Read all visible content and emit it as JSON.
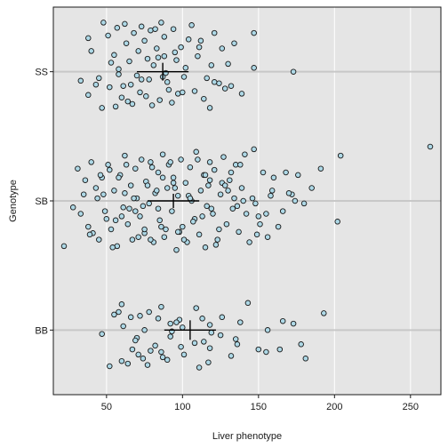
{
  "chart_data": {
    "type": "scatter",
    "xlabel": "Liver phenotype",
    "ylabel": "Genotype",
    "xlim": [
      15,
      270
    ],
    "x_ticks": [
      50,
      100,
      150,
      200,
      250
    ],
    "categories": [
      "BB",
      "SB",
      "SS"
    ],
    "grid": true,
    "background": "#e5e5e5",
    "point_fill": "#add8e6",
    "point_stroke": "#1a1a1a",
    "summary": [
      {
        "genotype": "SS",
        "mean": 87,
        "sd_bar": 10
      },
      {
        "genotype": "SB",
        "mean": 94,
        "sd_bar": 8
      },
      {
        "genotype": "BB",
        "mean": 105,
        "sd_bar": 11
      }
    ],
    "series": [
      {
        "category": "SS",
        "x": [
          48,
          62,
          73,
          79,
          86,
          94,
          106,
          121,
          147,
          57,
          68,
          82,
          104,
          134,
          38,
          51,
          63,
          75,
          88,
          99,
          112,
          126,
          40,
          55,
          84,
          96,
          110,
          147,
          173,
          33,
          45,
          58,
          70,
          81,
          90,
          102,
          116,
          130,
          52,
          66,
          78,
          91,
          108,
          124,
          38,
          60,
          72,
          85,
          97,
          114,
          128,
          139,
          43,
          56,
          67,
          80,
          93,
          118,
          47,
          64,
          76,
          89,
          101,
          121,
          132,
          58,
          71,
          83,
          95,
          111,
          53,
          65,
          77,
          88,
          119,
          61,
          73,
          87,
          100
        ],
        "y": [
          0.38,
          0.37,
          0.35,
          0.32,
          0.38,
          0.33,
          0.36,
          0.3,
          0.3,
          0.34,
          0.3,
          0.33,
          0.25,
          0.22,
          0.26,
          0.28,
          0.22,
          0.24,
          0.27,
          0.19,
          0.24,
          0.18,
          0.16,
          0.13,
          0.11,
          0.09,
          0.12,
          0.03,
          0.0,
          -0.07,
          -0.05,
          0.02,
          -0.03,
          0.05,
          -0.08,
          0.03,
          -0.05,
          0.06,
          -0.12,
          -0.1,
          -0.06,
          -0.14,
          -0.15,
          -0.09,
          -0.18,
          -0.2,
          -0.16,
          -0.22,
          -0.17,
          -0.21,
          -0.13,
          -0.17,
          -0.1,
          -0.27,
          -0.25,
          -0.26,
          -0.24,
          -0.28,
          -0.28,
          -0.23,
          -0.19,
          -0.01,
          -0.04,
          -0.08,
          -0.11,
          -0.02,
          0.16,
          0.18,
          0.15,
          0.19,
          0.07,
          0.08,
          0.1,
          0.12,
          0.05,
          -0.11,
          -0.06,
          -0.04,
          -0.16
        ]
      },
      {
        "category": "SB",
        "x": [
          22,
          28,
          31,
          35,
          38,
          40,
          43,
          45,
          47,
          49,
          51,
          53,
          55,
          57,
          59,
          61,
          62,
          64,
          66,
          67,
          69,
          70,
          72,
          73,
          75,
          76,
          78,
          79,
          81,
          82,
          84,
          85,
          87,
          88,
          90,
          91,
          93,
          94,
          96,
          97,
          99,
          100,
          102,
          103,
          105,
          106,
          108,
          109,
          111,
          112,
          114,
          115,
          117,
          118,
          120,
          121,
          123,
          125,
          127,
          129,
          131,
          133,
          135,
          137,
          139,
          141,
          144,
          147,
          150,
          153,
          156,
          159,
          163,
          168,
          172,
          176,
          180,
          185,
          191,
          202,
          204,
          263,
          33,
          41,
          48,
          56,
          63,
          71,
          77,
          86,
          95,
          101,
          110,
          119,
          126,
          134,
          142,
          151,
          160,
          36,
          44,
          52,
          60,
          68,
          74,
          83,
          92,
          98,
          107,
          116,
          124,
          132,
          140,
          149,
          158,
          166,
          39,
          46,
          54,
          65,
          80,
          89,
          104,
          113,
          122,
          130,
          138,
          146,
          155,
          170,
          58,
          69,
          79,
          87,
          97,
          115,
          128,
          148,
          50,
          62,
          75,
          84,
          94,
          105,
          118,
          136,
          174
        ],
        "y": [
          -0.35,
          -0.05,
          0.25,
          0.05,
          -0.2,
          0.3,
          0.1,
          -0.3,
          0.18,
          -0.08,
          0.28,
          -0.22,
          0.08,
          -0.35,
          0.2,
          -0.05,
          0.35,
          -0.18,
          0.12,
          -0.3,
          0.25,
          0.02,
          -0.12,
          0.32,
          -0.25,
          0.15,
          -0.02,
          0.3,
          -0.32,
          0.06,
          0.22,
          -0.15,
          0.36,
          -0.28,
          0.1,
          0.28,
          -0.08,
          0.18,
          -0.38,
          0.04,
          0.32,
          -0.2,
          0.14,
          -0.32,
          0.26,
          0.0,
          -0.14,
          0.38,
          -0.26,
          0.08,
          0.2,
          -0.36,
          0.12,
          0.3,
          -0.1,
          0.24,
          -0.3,
          0.05,
          0.34,
          -0.18,
          0.16,
          -0.06,
          0.28,
          -0.24,
          0.1,
          0.36,
          -0.32,
          0.4,
          -0.12,
          0.22,
          -0.28,
          0.08,
          -0.2,
          0.22,
          0.05,
          0.2,
          -0.02,
          0.1,
          0.25,
          -0.16,
          0.35,
          0.42,
          -0.1,
          -0.25,
          0.05,
          -0.15,
          0.28,
          -0.28,
          0.12,
          -0.2,
          0.1,
          -0.3,
          0.32,
          -0.06,
          0.14,
          0.02,
          -0.1,
          -0.18,
          0.18,
          0.16,
          0.02,
          0.24,
          -0.12,
          0.02,
          -0.04,
          0.08,
          0.3,
          -0.24,
          -0.16,
          -0.04,
          -0.22,
          0.22,
          0.0,
          -0.26,
          0.04,
          -0.08,
          -0.26,
          0.2,
          -0.36,
          -0.06,
          0.26,
          -0.22,
          0.04,
          -0.12,
          -0.34,
          0.08,
          0.28,
          0.02,
          -0.1,
          0.06,
          0.18,
          -0.08,
          -0.3,
          0.18,
          -0.24,
          0.2,
          0.12,
          -0.02,
          -0.14,
          0.06,
          -0.22,
          -0.06,
          0.14,
          0.02,
          0.16,
          -0.04,
          0.0
        ]
      },
      {
        "category": "BB",
        "x": [
          60,
          86,
          109,
          143,
          193,
          55,
          66,
          78,
          92,
          118,
          166,
          61,
          75,
          98,
          119,
          138,
          173,
          47,
          70,
          93,
          114,
          156,
          69,
          82,
          108,
          135,
          67,
          79,
          92,
          118,
          150,
          178,
          71,
          86,
          99,
          132,
          155,
          164,
          60,
          74,
          87,
          101,
          117,
          181,
          52,
          64,
          77,
          90,
          111,
          136,
          58,
          72,
          84,
          96,
          126,
          100,
          113,
          125
        ],
        "y": [
          0.2,
          0.18,
          0.17,
          0.21,
          0.13,
          0.12,
          0.1,
          0.14,
          0.05,
          0.04,
          0.07,
          0.03,
          0.0,
          0.08,
          -0.02,
          0.06,
          0.05,
          -0.03,
          -0.06,
          -0.01,
          -0.09,
          0.0,
          -0.08,
          -0.12,
          -0.1,
          -0.07,
          -0.15,
          -0.16,
          -0.05,
          -0.14,
          -0.15,
          -0.11,
          -0.19,
          -0.17,
          -0.13,
          -0.2,
          -0.17,
          -0.15,
          -0.24,
          -0.22,
          -0.21,
          -0.19,
          -0.25,
          -0.22,
          -0.28,
          -0.26,
          -0.27,
          -0.23,
          -0.29,
          -0.11,
          0.14,
          0.11,
          0.09,
          0.06,
          0.1,
          0.02,
          0.09,
          -0.04
        ]
      }
    ]
  }
}
